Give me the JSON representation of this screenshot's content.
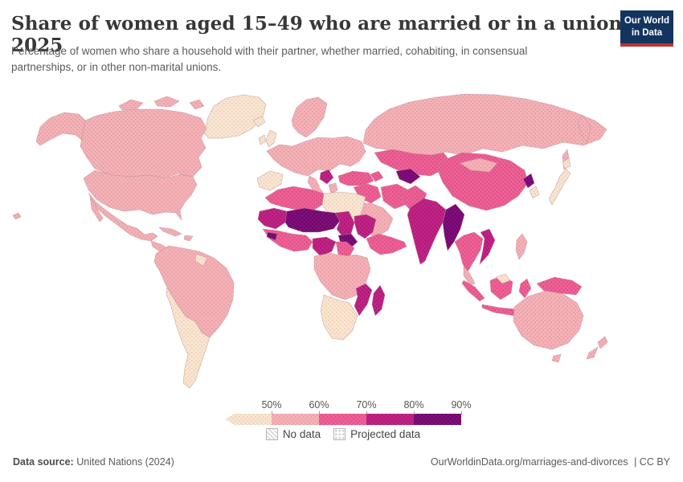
{
  "header": {
    "title": "Share of women aged 15–49 who are married or in a union, 2025",
    "subtitle": "Percentage of women who share a household with their partner, whether married, cohabiting, in consensual partnerships, or in other non-marital unions.",
    "logo": {
      "line1": "Our World",
      "line2": "in Data",
      "bg": "#12355f",
      "bar": "#c0322e"
    }
  },
  "chart_data": {
    "type": "choropleth_map",
    "title": "Share of women aged 15–49 who are married or in a union, 2025",
    "unit": "%",
    "projection_note": "dotted texture = projected data",
    "legend": {
      "ticks": [
        "50%",
        "60%",
        "70%",
        "80%",
        "90%"
      ],
      "no_data_label": "No data",
      "projected_label": "Projected data",
      "bins": [
        {
          "key": "lt50",
          "range": "<50%",
          "color": "#f8e6d2",
          "dot": "#e9c0a6"
        },
        {
          "key": "b50",
          "range": "50-60%",
          "color": "#f4b2b7",
          "dot": "#dd8c97"
        },
        {
          "key": "b60",
          "range": "60-70%",
          "color": "#ee6196",
          "dot": "#c93a73"
        },
        {
          "key": "b70",
          "range": "70-80%",
          "color": "#c32286",
          "dot": "#8c1260"
        },
        {
          "key": "b80",
          "range": "80-90%",
          "color": "#820c7e",
          "dot": "#49053f"
        }
      ]
    },
    "map_regions": [
      {
        "id": "greenland",
        "name": "Greenland",
        "bin": "lt50"
      },
      {
        "id": "iceland",
        "name": "Iceland",
        "bin": "lt50"
      },
      {
        "id": "canada",
        "name": "Canada",
        "bin": "b50"
      },
      {
        "id": "alaska",
        "name": "Alaska (United States)",
        "bin": "b50"
      },
      {
        "id": "usa",
        "name": "United States",
        "bin": "b50"
      },
      {
        "id": "hawaii",
        "name": "Hawaii (United States)",
        "bin": "b50"
      },
      {
        "id": "mexico",
        "name": "Mexico",
        "bin": "b50"
      },
      {
        "id": "camerica",
        "name": "Central America",
        "bin": "b50"
      },
      {
        "id": "caribbean",
        "name": "Caribbean",
        "bin": "b50"
      },
      {
        "id": "samerica-north",
        "name": "Brazil and northern South America",
        "bin": "b50"
      },
      {
        "id": "guyanas",
        "name": "Guyana and Suriname",
        "bin": "lt50"
      },
      {
        "id": "samerica-south",
        "name": "Argentina, Chile, Bolivia, Paraguay",
        "bin": "lt50"
      },
      {
        "id": "uk-ireland",
        "name": "United Kingdom and Ireland",
        "bin": "lt50"
      },
      {
        "id": "scandinavia",
        "name": "Scandinavia",
        "bin": "b50"
      },
      {
        "id": "europe",
        "name": "Mainland Europe",
        "bin": "b50"
      },
      {
        "id": "iberia",
        "name": "Spain and Portugal",
        "bin": "lt50"
      },
      {
        "id": "italy",
        "name": "Italy",
        "bin": "b50"
      },
      {
        "id": "greece",
        "name": "Greece",
        "bin": "b50"
      },
      {
        "id": "balkans",
        "name": "Western Balkans",
        "bin": "b70"
      },
      {
        "id": "turkey",
        "name": "Turkey",
        "bin": "b60"
      },
      {
        "id": "russia",
        "name": "Russia",
        "bin": "b50"
      },
      {
        "id": "kazakhstan",
        "name": "Kazakhstan and Central Asia",
        "bin": "b60"
      },
      {
        "id": "uzbekistan",
        "name": "Uzbekistan and Turkmenistan",
        "bin": "b80"
      },
      {
        "id": "caucasus",
        "name": "Caucasus",
        "bin": "b60"
      },
      {
        "id": "mideast",
        "name": "Iraq, Syria and Levant",
        "bin": "b60"
      },
      {
        "id": "iran",
        "name": "Iran",
        "bin": "b60"
      },
      {
        "id": "arabia",
        "name": "Saudi Arabia and Gulf",
        "bin": "b50"
      },
      {
        "id": "afpak",
        "name": "Afghanistan and Pakistan",
        "bin": "b60"
      },
      {
        "id": "india",
        "name": "India",
        "bin": "b70"
      },
      {
        "id": "bangladesh-myanmar",
        "name": "Bangladesh and Myanmar",
        "bin": "b80"
      },
      {
        "id": "china",
        "name": "China",
        "bin": "b60"
      },
      {
        "id": "mongolia",
        "name": "Mongolia",
        "bin": "b50"
      },
      {
        "id": "nkorea",
        "name": "North Korea",
        "bin": "b80"
      },
      {
        "id": "skorea",
        "name": "South Korea",
        "bin": "lt50"
      },
      {
        "id": "japan",
        "name": "Japan",
        "bin": "lt50"
      },
      {
        "id": "sea-mainland",
        "name": "Thailand and Cambodia",
        "bin": "b60"
      },
      {
        "id": "vietnam-laos",
        "name": "Vietnam and Laos",
        "bin": "b70"
      },
      {
        "id": "malaysia",
        "name": "Malaysia (peninsula)",
        "bin": "b50"
      },
      {
        "id": "borneo-my",
        "name": "Malaysian Borneo",
        "bin": "lt50"
      },
      {
        "id": "indonesia",
        "name": "Indonesia",
        "bin": "b60"
      },
      {
        "id": "png",
        "name": "Papua New Guinea",
        "bin": "b60"
      },
      {
        "id": "philippines",
        "name": "Philippines",
        "bin": "b50"
      },
      {
        "id": "australia",
        "name": "Australia",
        "bin": "b50"
      },
      {
        "id": "nz",
        "name": "New Zealand",
        "bin": "b50"
      },
      {
        "id": "nafrica-west",
        "name": "Morocco, Algeria, Tunisia",
        "bin": "b60"
      },
      {
        "id": "libya-egypt",
        "name": "Libya and Egypt",
        "bin": "lt50"
      },
      {
        "id": "mauritania",
        "name": "Mauritania and Senegal",
        "bin": "b70"
      },
      {
        "id": "mali-niger",
        "name": "Mali, Niger, Burkina Faso",
        "bin": "b80"
      },
      {
        "id": "chad",
        "name": "Chad (north)",
        "bin": "b70"
      },
      {
        "id": "chad-south",
        "name": "Southern Chad / CAR",
        "bin": "b80"
      },
      {
        "id": "sudan",
        "name": "Sudan",
        "bin": "b70"
      },
      {
        "id": "wafrica-coast",
        "name": "Ghana and Ivory Coast",
        "bin": "b60"
      },
      {
        "id": "guinea",
        "name": "Guinea",
        "bin": "b80"
      },
      {
        "id": "nigeria",
        "name": "Nigeria",
        "bin": "b70"
      },
      {
        "id": "cameroon",
        "name": "Cameroon",
        "bin": "b60"
      },
      {
        "id": "horn",
        "name": "Ethiopia and Somalia",
        "bin": "b60"
      },
      {
        "id": "cafrica",
        "name": "Central and East Africa",
        "bin": "b50"
      },
      {
        "id": "mozambique",
        "name": "Mozambique and Zimbabwe",
        "bin": "b70"
      },
      {
        "id": "safrica",
        "name": "Southern Africa",
        "bin": "lt50"
      },
      {
        "id": "madagascar",
        "name": "Madagascar",
        "bin": "b70"
      }
    ]
  },
  "footer": {
    "datasource_label": "Data source:",
    "datasource_value": "United Nations (2024)",
    "url": "OurWorldinData.org/marriages-and-divorces",
    "license": "| CC BY"
  }
}
